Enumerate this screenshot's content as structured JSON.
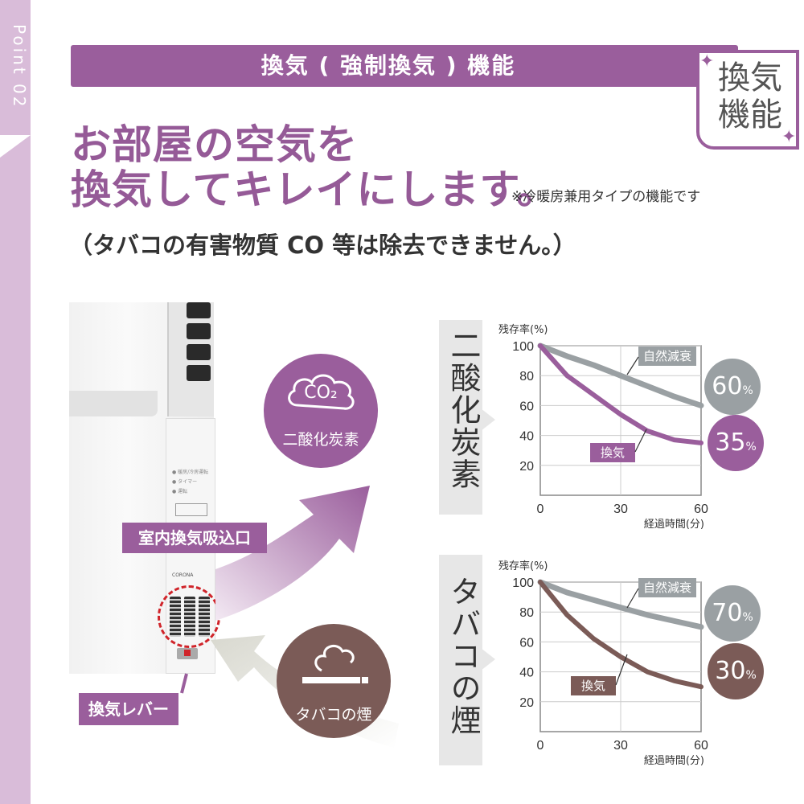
{
  "point_label": "Point 02",
  "header": {
    "title": "換気 ( 強制換気 ) 機能"
  },
  "badge": {
    "line1": "換気",
    "line2": "機能"
  },
  "headline": {
    "line1": "お部屋の空気を",
    "line2": "換気してキレイにします。"
  },
  "note": "※冷暖房兼用タイプの機能です",
  "subline": "（タバコの有害物質 CO 等は除去できません。）",
  "labels": {
    "intake": "室内換気吸込口",
    "lever": "換気レバー"
  },
  "circles": {
    "co2_icon": "CO₂",
    "co2": "二酸化炭素",
    "smoke": "タバコの煙"
  },
  "side": {
    "co2": "二酸化炭素",
    "smoke": "タバコの煙"
  },
  "unit": {
    "controls": [
      "● 暖房/冷房運転",
      "● タイマー",
      "● 運転"
    ],
    "logo": "CORONA"
  },
  "colors": {
    "accent": "#9a5e9c",
    "natural": "#9aa0a3",
    "smoke_accent": "#7b5b57"
  },
  "chart_data": [
    {
      "type": "line",
      "ylabel": "残存率(%)",
      "xlabel": "経過時間(分)",
      "xlim": [
        0,
        60
      ],
      "ylim": [
        0,
        100
      ],
      "xticks": [
        0,
        30,
        60
      ],
      "yticks": [
        20,
        40,
        60,
        80,
        100
      ],
      "series": [
        {
          "name": "自然減衰",
          "x": [
            0,
            10,
            20,
            30,
            40,
            50,
            60
          ],
          "y": [
            100,
            93,
            87,
            80,
            73,
            66,
            60
          ]
        },
        {
          "name": "換気",
          "x": [
            0,
            10,
            20,
            30,
            40,
            50,
            60
          ],
          "y": [
            100,
            80,
            67,
            54,
            43,
            37,
            35
          ]
        }
      ],
      "end_labels": [
        "60%",
        "35%"
      ]
    },
    {
      "type": "line",
      "ylabel": "残存率(%)",
      "xlabel": "経過時間(分)",
      "xlim": [
        0,
        60
      ],
      "ylim": [
        0,
        100
      ],
      "xticks": [
        0,
        30,
        60
      ],
      "yticks": [
        20,
        40,
        60,
        80,
        100
      ],
      "series": [
        {
          "name": "自然減衰",
          "x": [
            0,
            10,
            20,
            30,
            40,
            50,
            60
          ],
          "y": [
            100,
            93,
            88,
            83,
            78,
            74,
            70
          ]
        },
        {
          "name": "換気",
          "x": [
            0,
            10,
            20,
            30,
            40,
            50,
            60
          ],
          "y": [
            100,
            78,
            62,
            50,
            40,
            34,
            30
          ]
        }
      ],
      "end_labels": [
        "70%",
        "30%"
      ]
    }
  ]
}
